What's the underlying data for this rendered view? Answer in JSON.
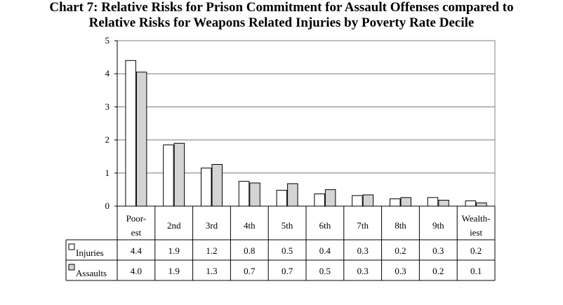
{
  "chart_data": {
    "type": "bar",
    "title_line1": "Chart 7: Relative Risks for Prison Commitment for Assault Offenses compared to",
    "title_line2": "Relative Risks for Weapons Related Injuries by Poverty Rate Decile",
    "categories": [
      [
        "Poor-",
        "est"
      ],
      [
        "2nd"
      ],
      [
        "3rd"
      ],
      [
        "4th"
      ],
      [
        "5th"
      ],
      [
        "6th"
      ],
      [
        "7th"
      ],
      [
        "8th"
      ],
      [
        "9th"
      ],
      [
        "Wealth-",
        "iest"
      ]
    ],
    "series": [
      {
        "name": "Injuries",
        "color": "#ffffff",
        "values": [
          4.4,
          1.85,
          1.15,
          0.75,
          0.48,
          0.37,
          0.32,
          0.22,
          0.26,
          0.16
        ],
        "labels": [
          "4.4",
          "1.9",
          "1.2",
          "0.8",
          "0.5",
          "0.4",
          "0.3",
          "0.2",
          "0.3",
          "0.2"
        ]
      },
      {
        "name": "Assaults",
        "color": "#d4d4d4",
        "values": [
          4.05,
          1.9,
          1.26,
          0.7,
          0.68,
          0.5,
          0.34,
          0.26,
          0.18,
          0.1
        ],
        "labels": [
          "4.0",
          "1.9",
          "1.3",
          "0.7",
          "0.7",
          "0.5",
          "0.3",
          "0.3",
          "0.2",
          "0.1"
        ]
      }
    ],
    "ylim": [
      0,
      5
    ],
    "yticks": [
      "0",
      "1",
      "2",
      "3",
      "4",
      "5"
    ],
    "grid": true,
    "legend": "data-table"
  }
}
